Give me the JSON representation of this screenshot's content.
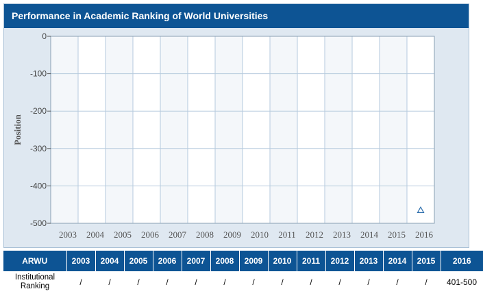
{
  "title": "Performance in Academic Ranking of World Universities",
  "colors": {
    "header_bg": "#0d5494",
    "plot_band_light": "#f4f7fa",
    "plot_band_white": "#ffffff",
    "grid": "#b5cadd",
    "marker": "#2a6cab"
  },
  "chart_data": {
    "type": "scatter",
    "title": "",
    "xlabel": "",
    "ylabel": "Position",
    "categories": [
      "2003",
      "2004",
      "2005",
      "2006",
      "2007",
      "2008",
      "2009",
      "2010",
      "2011",
      "2012",
      "2013",
      "2014",
      "2015",
      "2016"
    ],
    "ylim": [
      -500,
      0
    ],
    "yticks": [
      0,
      -100,
      -200,
      -300,
      -400,
      -500
    ],
    "grid": true,
    "series": [
      {
        "values": [
          null,
          null,
          null,
          null,
          null,
          null,
          null,
          null,
          null,
          null,
          null,
          null,
          null,
          -465
        ],
        "marker": "triangle-open"
      }
    ]
  },
  "table": {
    "header_label": "ARWU",
    "years": [
      "2003",
      "2004",
      "2005",
      "2006",
      "2007",
      "2008",
      "2009",
      "2010",
      "2011",
      "2012",
      "2013",
      "2014",
      "2015",
      "2016"
    ],
    "row_label": "Institutional Ranking",
    "row_values": [
      "/",
      "/",
      "/",
      "/",
      "/",
      "/",
      "/",
      "/",
      "/",
      "/",
      "/",
      "/",
      "/",
      "401-500"
    ]
  }
}
